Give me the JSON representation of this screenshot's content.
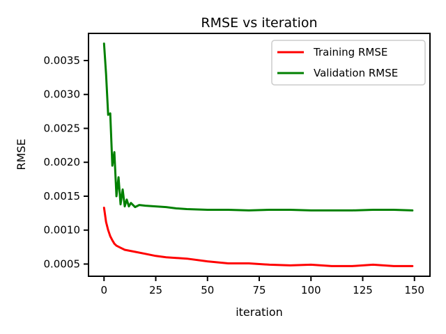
{
  "chart_data": {
    "type": "line",
    "title": "RMSE vs iteration",
    "xlabel": "iteration",
    "ylabel": "RMSE",
    "xlim": [
      -7.5,
      157.5
    ],
    "ylim": [
      0.00032,
      0.0039
    ],
    "xticks": [
      0,
      25,
      50,
      75,
      100,
      125,
      150
    ],
    "yticks": [
      0.0005,
      0.001,
      0.0015,
      0.002,
      0.0025,
      0.003,
      0.0035
    ],
    "ytick_labels": [
      "0.0005",
      "0.0010",
      "0.0015",
      "0.0020",
      "0.0025",
      "0.0030",
      "0.0035"
    ],
    "grid": false,
    "legend_position": "top-right",
    "series": [
      {
        "name": "Training RMSE",
        "color": "#ff0000",
        "points": [
          [
            0,
            0.00133
          ],
          [
            1,
            0.00112
          ],
          [
            2,
            0.001
          ],
          [
            3,
            0.00091
          ],
          [
            4,
            0.00085
          ],
          [
            5,
            0.0008
          ],
          [
            6,
            0.00077
          ],
          [
            8,
            0.00074
          ],
          [
            10,
            0.00071
          ],
          [
            15,
            0.00068
          ],
          [
            20,
            0.00065
          ],
          [
            25,
            0.00062
          ],
          [
            30,
            0.0006
          ],
          [
            40,
            0.00058
          ],
          [
            50,
            0.00054
          ],
          [
            60,
            0.00051
          ],
          [
            70,
            0.00051
          ],
          [
            80,
            0.00049
          ],
          [
            90,
            0.00048
          ],
          [
            100,
            0.00049
          ],
          [
            110,
            0.00047
          ],
          [
            120,
            0.00047
          ],
          [
            130,
            0.00049
          ],
          [
            140,
            0.00047
          ],
          [
            149,
            0.00047
          ]
        ]
      },
      {
        "name": "Validation RMSE",
        "color": "#008000",
        "points": [
          [
            0,
            0.00375
          ],
          [
            1,
            0.0033
          ],
          [
            2,
            0.0027
          ],
          [
            3,
            0.00272
          ],
          [
            4,
            0.00195
          ],
          [
            5,
            0.00215
          ],
          [
            6,
            0.0015
          ],
          [
            7,
            0.00178
          ],
          [
            8,
            0.00138
          ],
          [
            9,
            0.0016
          ],
          [
            10,
            0.00135
          ],
          [
            11,
            0.00145
          ],
          [
            12,
            0.00135
          ],
          [
            13,
            0.0014
          ],
          [
            15,
            0.00134
          ],
          [
            17,
            0.00137
          ],
          [
            20,
            0.00136
          ],
          [
            25,
            0.00135
          ],
          [
            30,
            0.00134
          ],
          [
            35,
            0.00132
          ],
          [
            40,
            0.00131
          ],
          [
            50,
            0.0013
          ],
          [
            60,
            0.0013
          ],
          [
            70,
            0.00129
          ],
          [
            80,
            0.0013
          ],
          [
            90,
            0.0013
          ],
          [
            100,
            0.00129
          ],
          [
            110,
            0.00129
          ],
          [
            120,
            0.00129
          ],
          [
            130,
            0.0013
          ],
          [
            140,
            0.0013
          ],
          [
            149,
            0.00129
          ]
        ]
      }
    ]
  }
}
